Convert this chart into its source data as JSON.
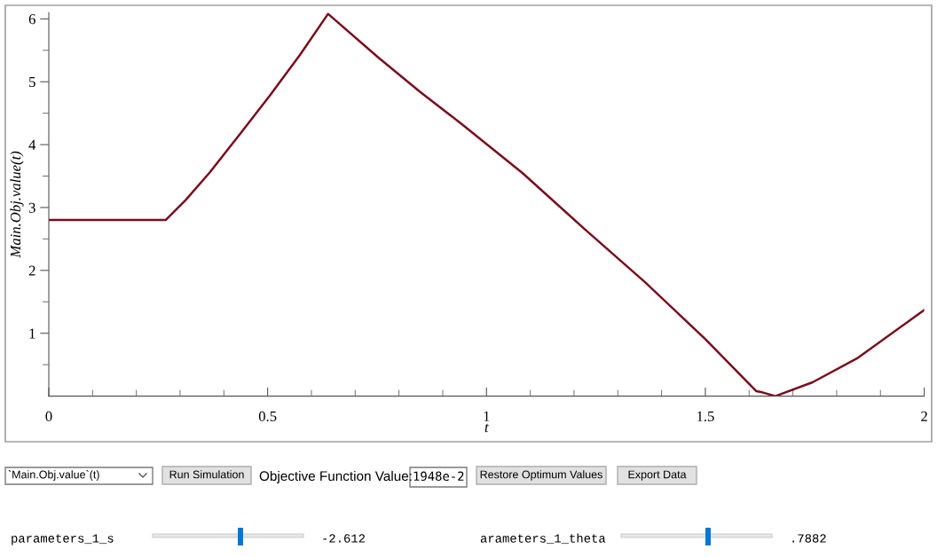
{
  "chart_data": {
    "type": "line",
    "xlabel": "t",
    "ylabel": "Main.Obj.value(t)",
    "series": [
      {
        "color": "#7a0c1c",
        "x": [
          0,
          0.267,
          0.313,
          0.368,
          0.437,
          0.505,
          0.574,
          0.638,
          0.752,
          0.848,
          0.943,
          1.082,
          1.222,
          1.361,
          1.501,
          1.616,
          1.63,
          1.66,
          1.745,
          1.849,
          2.0
        ],
        "values": [
          2.8,
          2.8,
          3.12,
          3.56,
          4.17,
          4.78,
          5.43,
          6.08,
          5.39,
          4.84,
          4.33,
          3.55,
          2.67,
          1.82,
          0.9,
          0.08,
          0.06,
          0.0,
          0.22,
          0.61,
          1.37
        ]
      }
    ],
    "xlim": [
      0,
      2
    ],
    "ylim": [
      0,
      6.1
    ],
    "xticks": [
      0,
      {
        "value": 0.1,
        "label": null
      },
      {
        "value": 0.2,
        "label": null
      },
      {
        "value": 0.3,
        "label": null
      },
      {
        "value": 0.4,
        "label": null
      },
      0.5,
      {
        "value": 0.6,
        "label": null
      },
      {
        "value": 0.7,
        "label": null
      },
      {
        "value": 0.8,
        "label": null
      },
      {
        "value": 0.9,
        "label": null
      },
      1,
      {
        "value": 1.1,
        "label": null
      },
      {
        "value": 1.2,
        "label": null
      },
      {
        "value": 1.3,
        "label": null
      },
      {
        "value": 1.4,
        "label": null
      },
      1.5,
      {
        "value": 1.6,
        "label": null
      },
      {
        "value": 1.7,
        "label": null
      },
      {
        "value": 1.8,
        "label": null
      },
      {
        "value": 1.9,
        "label": null
      },
      2
    ],
    "yticks": [
      {
        "value": 0.5,
        "label": null
      },
      1,
      {
        "value": 1.5,
        "label": null
      },
      2,
      {
        "value": 2.5,
        "label": null
      },
      3,
      {
        "value": 3.5,
        "label": null
      },
      4,
      {
        "value": 4.5,
        "label": null
      },
      5,
      {
        "value": 5.5,
        "label": null
      },
      6
    ],
    "grid": false,
    "legend": false,
    "marker": "none",
    "line_style": "solid",
    "annotations": [
      "`Main.Obj.value`(t)",
      "Run Simulation",
      "Objective Function Value:",
      "1948e-2",
      "Restore Optimum Values",
      "Export Data",
      "parameters_1_s",
      "-2.612",
      "arameters_1_theta",
      ".7882"
    ]
  }
}
